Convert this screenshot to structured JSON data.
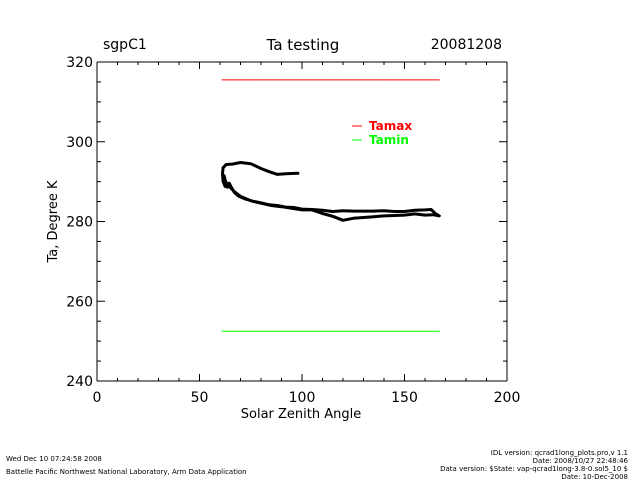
{
  "header": {
    "left": "sgpC1",
    "title": "Ta testing",
    "date": "20081208"
  },
  "footer": {
    "timestamp": "Wed Dec 10 07:24:58 2008",
    "institution": "Battelle Pacific Northwest National Laboratory, Arm Data Application",
    "idl_version": "IDL version: qcrad1long_plots.pro,v 1.1",
    "file_date": "Date: 2008/10/27 22:48:46",
    "data_version": "Data version: $State: vap-qcrad1long-3.8-0.sol5_10 $",
    "run_date": "Date: 10-Dec-2008"
  },
  "colors": {
    "axis": "#000000",
    "tamax": "#ff0000",
    "tamin": "#00ff00",
    "data": "#000000"
  },
  "chart_data": {
    "type": "line",
    "title": "Ta testing",
    "xlabel": "Solar Zenith Angle",
    "ylabel": "Ta, Degree K",
    "xlim": [
      0,
      200
    ],
    "ylim": [
      240,
      320
    ],
    "xticks": [
      0,
      50,
      100,
      150,
      200
    ],
    "yticks": [
      240,
      260,
      280,
      300,
      320
    ],
    "legend": [
      {
        "name": "Tamax",
        "color": "#ff0000"
      },
      {
        "name": "Tamin",
        "color": "#00ff00"
      }
    ],
    "series": [
      {
        "name": "Tamax",
        "color": "#ff0000",
        "x": [
          61,
          167
        ],
        "y": [
          315.5,
          315.5
        ]
      },
      {
        "name": "Tamin",
        "color": "#00ff00",
        "x": [
          61,
          167
        ],
        "y": [
          252.5,
          252.5
        ]
      },
      {
        "name": "Ta",
        "color": "#000000",
        "x": [
          98,
          92,
          88,
          84,
          80,
          75,
          70,
          66,
          63,
          61.5,
          61.2,
          61.5,
          62.5,
          62.0,
          63.5,
          64.5,
          65.5,
          67.0,
          69.0,
          72.0,
          76.0,
          80.0,
          84.0,
          88.0,
          92.0,
          96.0,
          100.0,
          105.0,
          110.0,
          115.0,
          120.0,
          125.0,
          130.0,
          135.0,
          140.0,
          145.0,
          150.0,
          155.0,
          160.0,
          163.0,
          165.0,
          167.0,
          166.0,
          164.0,
          160.0,
          155.0,
          150.0,
          145.0,
          140.0,
          135.0,
          130.0,
          125.0,
          120.0,
          115.0,
          110.0,
          105.0,
          100.0,
          95.0,
          90.0,
          85.0,
          80.0,
          75.0,
          70.0,
          67.0,
          65.0,
          63.5,
          62.5,
          62.0
        ],
        "y": [
          292.1,
          292.0,
          291.8,
          292.5,
          293.3,
          294.5,
          294.8,
          294.4,
          294.3,
          293.5,
          292.0,
          290.0,
          288.8,
          289.6,
          288.6,
          289.6,
          288.6,
          287.3,
          286.4,
          285.7,
          285.1,
          284.7,
          284.2,
          284.0,
          283.6,
          283.5,
          283.1,
          283.0,
          282.8,
          282.5,
          282.7,
          282.6,
          282.6,
          282.6,
          282.7,
          282.5,
          282.5,
          282.8,
          282.9,
          283.0,
          282.0,
          281.4,
          281.5,
          281.7,
          281.6,
          281.9,
          281.6,
          281.5,
          281.4,
          281.2,
          281.0,
          280.8,
          280.3,
          281.3,
          282.0,
          282.9,
          282.9,
          283.3,
          283.7,
          284.0,
          284.6,
          285.2,
          286.3,
          287.5,
          288.5,
          289.2,
          290.4,
          291.5
        ]
      }
    ]
  }
}
